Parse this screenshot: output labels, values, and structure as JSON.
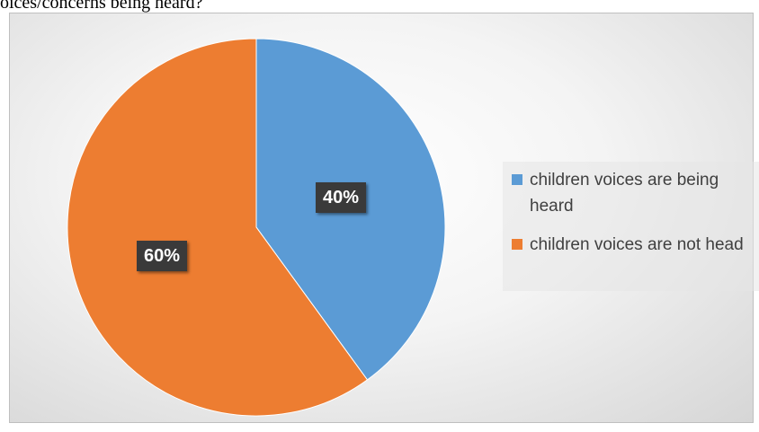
{
  "caption": "oices/concerns being heard?",
  "chart_data": {
    "type": "pie",
    "slices": [
      {
        "label": "children voices are being heard",
        "value": 40,
        "display": "40%",
        "color": "#5b9bd5"
      },
      {
        "label": "children voices are not head",
        "value": 60,
        "display": "60%",
        "color": "#ed7d31"
      }
    ],
    "legend_position": "right"
  }
}
